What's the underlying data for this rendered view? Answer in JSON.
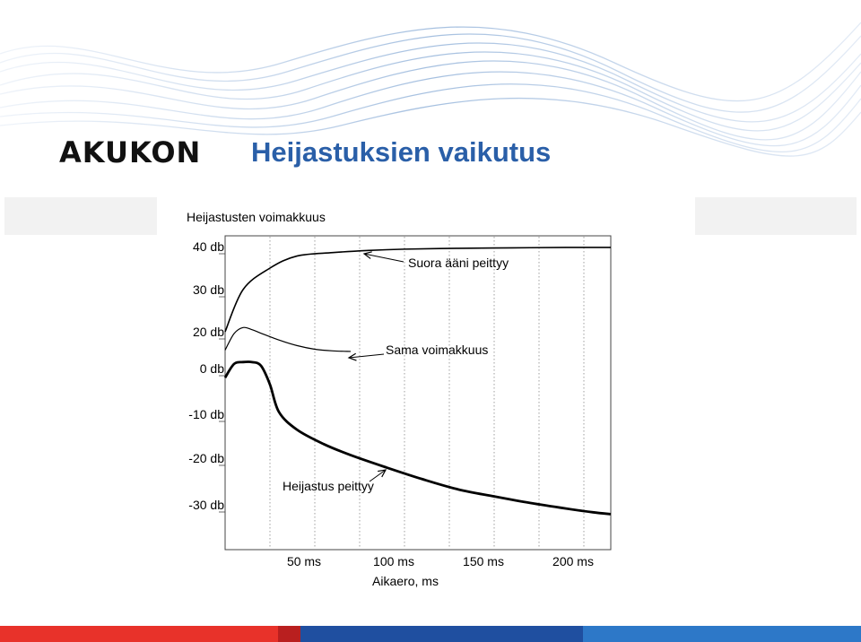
{
  "header": {
    "logo_text": "AKUKON",
    "title": "Heijastuksien vaikutus"
  },
  "colors": {
    "title": "#2a5fa8",
    "wave": "#8fb0d8",
    "bar": [
      "#e8322a",
      "#c62828",
      "#1f4fa0",
      "#2d78c8"
    ]
  },
  "chart_data": {
    "type": "line",
    "title": "Heijastusten voimakkuus",
    "xlabel": "Aikaero, ms",
    "ylabel": "",
    "xlim": [
      0,
      215
    ],
    "x_ticks": [
      50,
      100,
      150,
      200
    ],
    "x_tick_labels": [
      "50 ms",
      "100 ms",
      "150 ms",
      "200 ms"
    ],
    "y_tick_labels": [
      "40 db",
      "30 db",
      "20 db",
      "0 db",
      "-10 db",
      "-20 db",
      "-30 db"
    ],
    "y_tick_values": [
      40,
      30,
      20,
      0,
      -10,
      -20,
      -30
    ],
    "grid": "vertical dotted",
    "series": [
      {
        "x": [
          0,
          10,
          25,
          40,
          60,
          80,
          100,
          130,
          160,
          190,
          215
        ],
        "values": [
          20,
          30,
          35,
          37.8,
          38.6,
          39.1,
          39.4,
          39.6,
          39.7,
          39.8,
          39.8
        ]
      },
      {
        "x": [
          0,
          5,
          10,
          15,
          20,
          30,
          40,
          50,
          60,
          70
        ],
        "values": [
          10,
          19,
          21,
          20.5,
          19.2,
          15.5,
          12.5,
          10.5,
          9.6,
          9.3
        ]
      },
      {
        "x": [
          0,
          5,
          10,
          15,
          20,
          25,
          30,
          40,
          55,
          70,
          90,
          110,
          130,
          150,
          170,
          190,
          205,
          215
        ],
        "values": [
          -2,
          2.5,
          3.5,
          3.5,
          1.5,
          -3.5,
          -9.5,
          -13.5,
          -16.8,
          -19.3,
          -22,
          -24.5,
          -26.7,
          -28.2,
          -29.6,
          -30.8,
          -31.6,
          -32
        ]
      }
    ],
    "annotations": [
      {
        "text": "Suora ääni peittyy",
        "x": 75,
        "y": 37
      },
      {
        "text": "Sama voimakkuus",
        "x": 90,
        "y": 5
      },
      {
        "text": "Heijastus peittyy",
        "x": 32,
        "y": -28
      }
    ]
  }
}
